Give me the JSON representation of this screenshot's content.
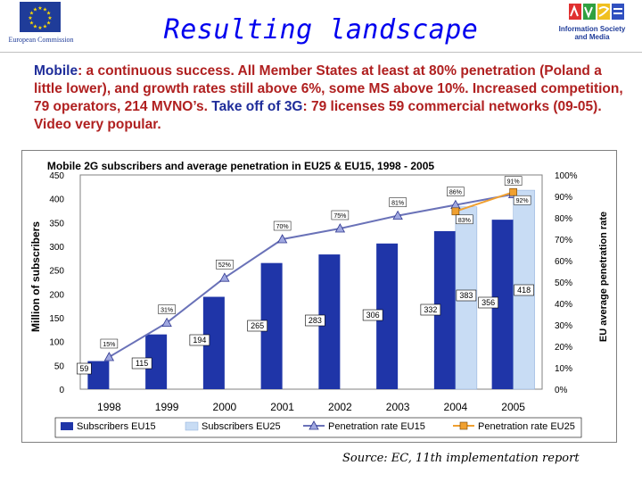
{
  "header": {
    "title": "Resulting landscape",
    "left_logo_caption": "European Commission",
    "right_logo_caption_1": "Information Society",
    "right_logo_caption_2": "and Media"
  },
  "intro": {
    "p1_a": "Mobile",
    "p1_b": ": a continuous success. All Member States at least at 80% penetration (Poland a little lower), and growth rates still above 6%, some MS above 10%. Increased competition, 79 operators, 214 MVNO’s. ",
    "p1_c": "Take off of 3G",
    "p1_d": ": 79 licenses 59 commercial networks (09-05). Video very popular."
  },
  "source": "Source: EC, 11th implementation report",
  "colors": {
    "bar_eu15": "#1f35a8",
    "bar_eu25": "#c8dcf4",
    "line_eu15": "#6a72b8",
    "line_eu25": "#f0a030",
    "title_color": "#0000ee",
    "red_text": "#b02020",
    "blue_text": "#1f2d9a"
  },
  "chart_data": {
    "type": "bar",
    "title": "Mobile 2G subscribers and average penetration in EU25 & EU15, 1998 -  2005",
    "ylabel": "Million of subscribers",
    "y2label": "EU average penetration rate",
    "categories": [
      "1998",
      "1999",
      "2000",
      "2001",
      "2002",
      "2003",
      "2004",
      "2005"
    ],
    "ylim": [
      0,
      450
    ],
    "yticks": [
      0,
      50,
      100,
      150,
      200,
      250,
      300,
      350,
      400,
      450
    ],
    "y2lim": [
      0,
      100
    ],
    "y2ticks": [
      "0%",
      "10%",
      "20%",
      "30%",
      "40%",
      "50%",
      "60%",
      "70%",
      "80%",
      "90%",
      "100%"
    ],
    "series": [
      {
        "name": "Subscribers EU15",
        "type": "bar",
        "axis": "left",
        "values": [
          59,
          115,
          194,
          265,
          283,
          306,
          332,
          356
        ],
        "labels": [
          "59",
          "115",
          "194",
          "265",
          "283",
          "306",
          "332",
          "356"
        ]
      },
      {
        "name": "Subscribers EU25",
        "type": "bar",
        "axis": "left",
        "values": [
          null,
          null,
          null,
          null,
          null,
          null,
          383,
          418
        ],
        "labels": [
          "",
          "",
          "",
          "",
          "",
          "",
          "383",
          "418"
        ]
      },
      {
        "name": "Penetration rate EU15",
        "type": "line",
        "axis": "right",
        "values": [
          15,
          31,
          52,
          70,
          75,
          81,
          86,
          91
        ],
        "labels": [
          "15%",
          "31%",
          "52%",
          "70%",
          "75%",
          "81%",
          "86%",
          "91%"
        ]
      },
      {
        "name": "Penetration rate EU25",
        "type": "line",
        "axis": "right",
        "values": [
          null,
          null,
          null,
          null,
          null,
          null,
          83,
          92
        ],
        "labels": [
          "",
          "",
          "",
          "",
          "",
          "",
          "83%",
          "92%"
        ]
      }
    ],
    "grid": false,
    "legend": "bottom"
  }
}
